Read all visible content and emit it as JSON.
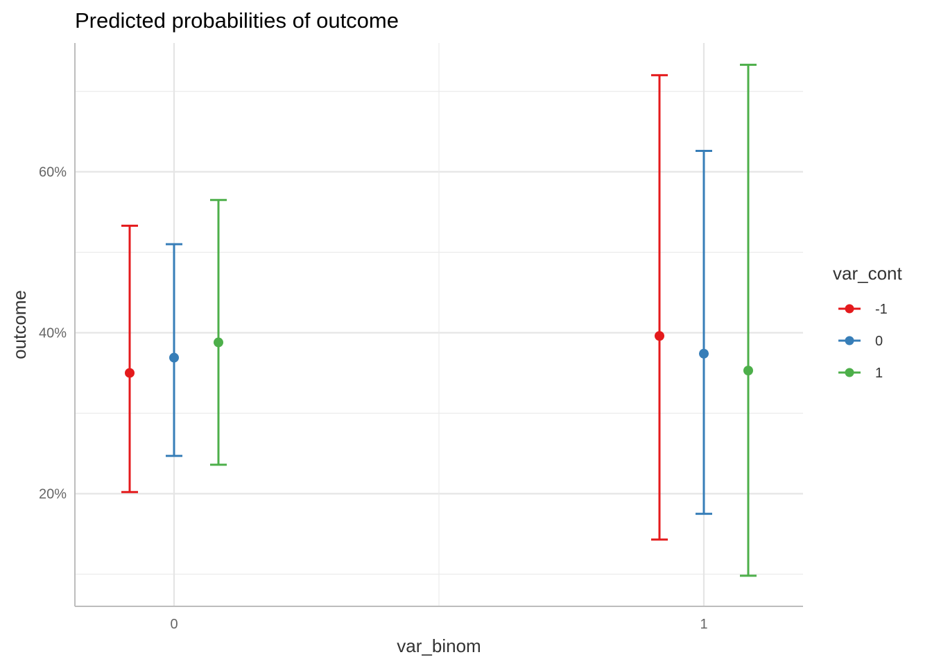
{
  "chart_data": {
    "type": "errorbar",
    "title": "Predicted probabilities of outcome",
    "xlabel": "var_binom",
    "ylabel": "outcome",
    "categories": [
      "0",
      "1"
    ],
    "ylim": [
      0.06,
      0.76
    ],
    "y_ticks": [
      {
        "value": 0.2,
        "label": "20%"
      },
      {
        "value": 0.4,
        "label": "40%"
      },
      {
        "value": 0.6,
        "label": "60%"
      }
    ],
    "y_minor": [
      0.1,
      0.3,
      0.5,
      0.7
    ],
    "grid": true,
    "legend": {
      "title": "var_cont",
      "placement": "right"
    },
    "series": [
      {
        "name": "-1",
        "color": "#E41A1C",
        "values": [
          0.35,
          0.396
        ],
        "lower": [
          0.202,
          0.143
        ],
        "upper": [
          0.533,
          0.72
        ]
      },
      {
        "name": "0",
        "color": "#377EB8",
        "values": [
          0.369,
          0.374
        ],
        "lower": [
          0.247,
          0.175
        ],
        "upper": [
          0.51,
          0.626
        ]
      },
      {
        "name": "1",
        "color": "#4DAF4A",
        "values": [
          0.388,
          0.353
        ],
        "lower": [
          0.236,
          0.098
        ],
        "upper": [
          0.565,
          0.733
        ]
      }
    ]
  }
}
